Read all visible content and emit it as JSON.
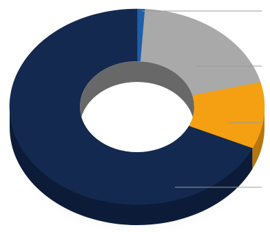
{
  "chart_data": {
    "type": "pie",
    "style": "3d-donut",
    "title": "",
    "legend": "none",
    "data_labels": "none",
    "slices": [
      {
        "value": 1,
        "color": "#1f5ea8",
        "side_color": "#123a6b"
      },
      {
        "value": 20,
        "color": "#a9a9a9",
        "side_color": "#6e6e6e"
      },
      {
        "value": 11,
        "color": "#f4a012",
        "side_color": "#b7760c"
      },
      {
        "value": 68,
        "color": "#13294f",
        "side_color": "#0c1c38"
      }
    ],
    "leader_lines_color": "#9a9a9a",
    "hole_color": "#ffffff",
    "inner_wall_color": "#4d4d4d"
  }
}
